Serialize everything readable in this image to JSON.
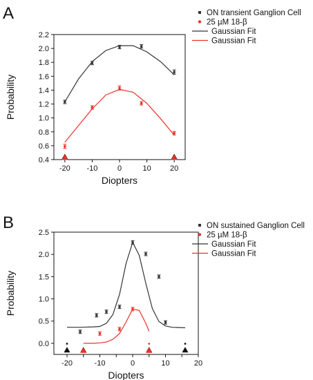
{
  "chart_data": [
    {
      "type": "scatter",
      "panel_label": "A",
      "xlabel": "Diopters",
      "ylabel": "Probability",
      "xlim": [
        -24,
        24
      ],
      "ylim": [
        0.4,
        2.2
      ],
      "xticks": [
        -20,
        -10,
        0,
        10,
        20
      ],
      "xtick_labels": [
        "-20",
        "-10",
        "0",
        "10",
        "20"
      ],
      "yticks": [
        0.4,
        0.6,
        0.8,
        1.0,
        1.2,
        1.4,
        1.6,
        1.8,
        2.0,
        2.2
      ],
      "ytick_labels": [
        "0.4",
        "0.6",
        "0.8",
        "1.0",
        "1.2",
        "1.4",
        "1.6",
        "1.8",
        "2.0",
        "2.2"
      ],
      "grid": false,
      "legend_position": "top-right",
      "series": [
        {
          "name": "ON transient Ganglion Cell",
          "kind": "points",
          "color": "#333333",
          "marker": "square",
          "x": [
            -20,
            -10,
            0,
            8,
            20
          ],
          "y": [
            1.23,
            1.79,
            2.02,
            2.03,
            1.66
          ],
          "err": [
            0.01,
            0.02,
            0.01,
            0.02,
            0.03
          ]
        },
        {
          "name": "25 µM 18-β",
          "kind": "points",
          "color": "#e8322a",
          "marker": "circle",
          "x": [
            -20,
            -10,
            0,
            8,
            20
          ],
          "y": [
            0.59,
            1.15,
            1.43,
            1.21,
            0.78
          ],
          "err": [
            0.03,
            0.02,
            0.03,
            0.01,
            0.02
          ]
        },
        {
          "name": "Gaussian Fit",
          "kind": "fit",
          "color": "#333333",
          "x": [
            -20,
            -15,
            -10,
            -5,
            0,
            5,
            10,
            15,
            20
          ],
          "y": [
            1.23,
            1.56,
            1.81,
            1.97,
            2.04,
            2.04,
            1.95,
            1.81,
            1.62
          ]
        },
        {
          "name": "Gaussian Fit",
          "kind": "fit",
          "color": "#e8322a",
          "x": [
            -20,
            -15,
            -10,
            -5,
            0,
            5,
            10,
            15,
            20
          ],
          "y": [
            0.65,
            0.89,
            1.13,
            1.33,
            1.41,
            1.37,
            1.21,
            0.99,
            0.75
          ]
        }
      ],
      "markers": [
        {
          "x": -20,
          "y": 0.44,
          "color": "#111111",
          "shape": "triangle"
        },
        {
          "x": -20,
          "y": 0.43,
          "color": "#e8322a",
          "shape": "triangle"
        },
        {
          "x": 20,
          "y": 0.44,
          "color": "#111111",
          "shape": "triangle"
        },
        {
          "x": 20,
          "y": 0.43,
          "color": "#e8322a",
          "shape": "triangle"
        }
      ]
    },
    {
      "type": "scatter",
      "panel_label": "B",
      "xlabel": "Diopters",
      "ylabel": "Probability",
      "xlim": [
        -24,
        20
      ],
      "ylim": [
        -0.25,
        2.5
      ],
      "xticks": [
        -20,
        -15,
        -10,
        -5,
        0,
        5,
        10,
        15,
        20
      ],
      "xtick_labels": [
        "-20",
        "",
        "-10",
        "",
        "0",
        "",
        "10",
        "",
        "20"
      ],
      "yticks": [
        0.0,
        0.5,
        1.0,
        1.5,
        2.0,
        2.5
      ],
      "ytick_labels": [
        "0.0",
        "0.5",
        "1.0",
        "1.5",
        "2.0",
        "2.5"
      ],
      "grid": false,
      "legend_position": "top-right",
      "series": [
        {
          "name": "ON sustained Ganglion Cell",
          "kind": "points",
          "color": "#333333",
          "marker": "square",
          "x": [
            -16,
            -11,
            -8,
            -4,
            0,
            4,
            8,
            10
          ],
          "y": [
            0.26,
            0.63,
            0.71,
            0.82,
            2.27,
            2.01,
            1.5,
            0.47
          ],
          "err": [
            0.01,
            0.03,
            0.03,
            0.03,
            0.01,
            0.03,
            0.02,
            0.01
          ]
        },
        {
          "name": "25 µM 18-β",
          "kind": "points",
          "color": "#e8322a",
          "marker": "circle",
          "x": [
            -10,
            -4,
            0
          ],
          "y": [
            0.22,
            0.32,
            0.77
          ],
          "err": [
            0.02,
            0.02,
            0.02
          ]
        },
        {
          "name": "Gaussian Fit",
          "kind": "fit",
          "color": "#333333",
          "x": [
            -20,
            -16,
            -12,
            -10,
            -8,
            -6,
            -4,
            -2,
            0,
            2,
            4,
            6,
            8,
            10,
            12,
            16
          ],
          "y": [
            0.36,
            0.36,
            0.37,
            0.38,
            0.45,
            0.65,
            1.1,
            1.8,
            2.27,
            1.98,
            1.35,
            0.78,
            0.49,
            0.39,
            0.36,
            0.35
          ]
        },
        {
          "name": "Gaussian Fit",
          "kind": "fit",
          "color": "#e8322a",
          "x": [
            -15,
            -12,
            -10,
            -8,
            -6,
            -4,
            -2,
            0,
            2,
            4,
            5
          ],
          "y": [
            0.0,
            0.0,
            0.01,
            0.03,
            0.09,
            0.22,
            0.48,
            0.77,
            0.74,
            0.45,
            0.27
          ]
        }
      ],
      "markers": [
        {
          "x": -20,
          "y": -0.15,
          "color": "#111111",
          "shape": "triangle"
        },
        {
          "x": -15,
          "y": -0.15,
          "color": "#111111",
          "shape": "triangle"
        },
        {
          "x": -15,
          "y": -0.16,
          "color": "#e8322a",
          "shape": "triangle"
        },
        {
          "x": 5,
          "y": -0.15,
          "color": "#111111",
          "shape": "triangle"
        },
        {
          "x": 5,
          "y": -0.16,
          "color": "#e8322a",
          "shape": "triangle"
        },
        {
          "x": 16,
          "y": -0.15,
          "color": "#111111",
          "shape": "triangle"
        },
        {
          "x": -20,
          "y": -0.01,
          "color": "#111111",
          "shape": "dot"
        },
        {
          "x": 5,
          "y": -0.01,
          "color": "#e8322a",
          "shape": "dot"
        },
        {
          "x": 16,
          "y": -0.01,
          "color": "#111111",
          "shape": "dot"
        }
      ]
    }
  ]
}
